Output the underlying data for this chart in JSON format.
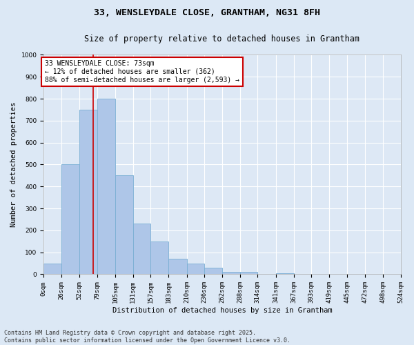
{
  "title_line1": "33, WENSLEYDALE CLOSE, GRANTHAM, NG31 8FH",
  "title_line2": "Size of property relative to detached houses in Grantham",
  "xlabel": "Distribution of detached houses by size in Grantham",
  "ylabel": "Number of detached properties",
  "bar_color": "#aec6e8",
  "bar_edge_color": "#7aafd4",
  "background_color": "#dde8f5",
  "grid_color": "#ffffff",
  "annotation_box_color": "#cc0000",
  "vline_color": "#cc0000",
  "annotation_text": "33 WENSLEYDALE CLOSE: 73sqm\n← 12% of detached houses are smaller (362)\n88% of semi-detached houses are larger (2,593) →",
  "property_size": 73,
  "bin_edges": [
    0,
    26,
    52,
    79,
    105,
    131,
    157,
    183,
    210,
    236,
    262,
    288,
    314,
    341,
    367,
    393,
    419,
    445,
    472,
    498,
    524
  ],
  "bin_counts": [
    50,
    500,
    750,
    800,
    450,
    230,
    150,
    70,
    50,
    30,
    10,
    10,
    0,
    5,
    0,
    0,
    0,
    0,
    0,
    0
  ],
  "ylim": [
    0,
    1000
  ],
  "yticks": [
    0,
    100,
    200,
    300,
    400,
    500,
    600,
    700,
    800,
    900,
    1000
  ],
  "footnote": "Contains HM Land Registry data © Crown copyright and database right 2025.\nContains public sector information licensed under the Open Government Licence v3.0.",
  "title_fontsize": 9.5,
  "subtitle_fontsize": 8.5,
  "axis_label_fontsize": 7.5,
  "tick_fontsize": 6.5,
  "annotation_fontsize": 7,
  "footnote_fontsize": 6
}
